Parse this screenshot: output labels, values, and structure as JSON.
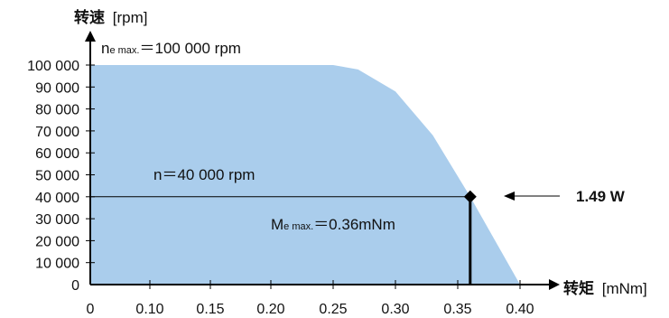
{
  "chart_data": {
    "type": "area",
    "x_axis": {
      "label_cn": "转矩",
      "label_unit": "[mNm]",
      "ticks": [
        0,
        0.1,
        0.15,
        0.2,
        0.25,
        0.3,
        0.35,
        0.4
      ],
      "tick_labels": [
        "0",
        "0.10",
        "0.15",
        "0.20",
        "0.25",
        "0.30",
        "0.35",
        "0.40"
      ]
    },
    "y_axis": {
      "label_cn": "转速",
      "label_unit": "[rpm]",
      "ticks": [
        0,
        10000,
        20000,
        30000,
        40000,
        50000,
        60000,
        70000,
        80000,
        90000,
        100000
      ],
      "tick_labels": [
        "0",
        "10 000",
        "20 000",
        "30 000",
        "40 000",
        "50 000",
        "60 000",
        "70 000",
        "80 000",
        "90 000",
        "100 000"
      ]
    },
    "area_outline": [
      {
        "x": 0,
        "y": 100000
      },
      {
        "x": 0.25,
        "y": 100000
      },
      {
        "x": 0.27,
        "y": 98000
      },
      {
        "x": 0.3,
        "y": 88000
      },
      {
        "x": 0.33,
        "y": 68000
      },
      {
        "x": 0.36,
        "y": 40000
      },
      {
        "x": 0.4,
        "y": 0
      },
      {
        "x": 0,
        "y": 0
      }
    ],
    "operating_point": {
      "torque": 0.36,
      "speed": 40000
    },
    "fill_color": "#aacdec",
    "annotations": {
      "max_speed_prefix": "n",
      "max_speed_sub": "e max.",
      "max_speed_value": "＝100 000 rpm",
      "speed_line": "n＝40 000 rpm",
      "max_torque_prefix": "M",
      "max_torque_sub": "e max.",
      "max_torque_value": "＝0.36mNm",
      "power": "1.49 W"
    }
  }
}
